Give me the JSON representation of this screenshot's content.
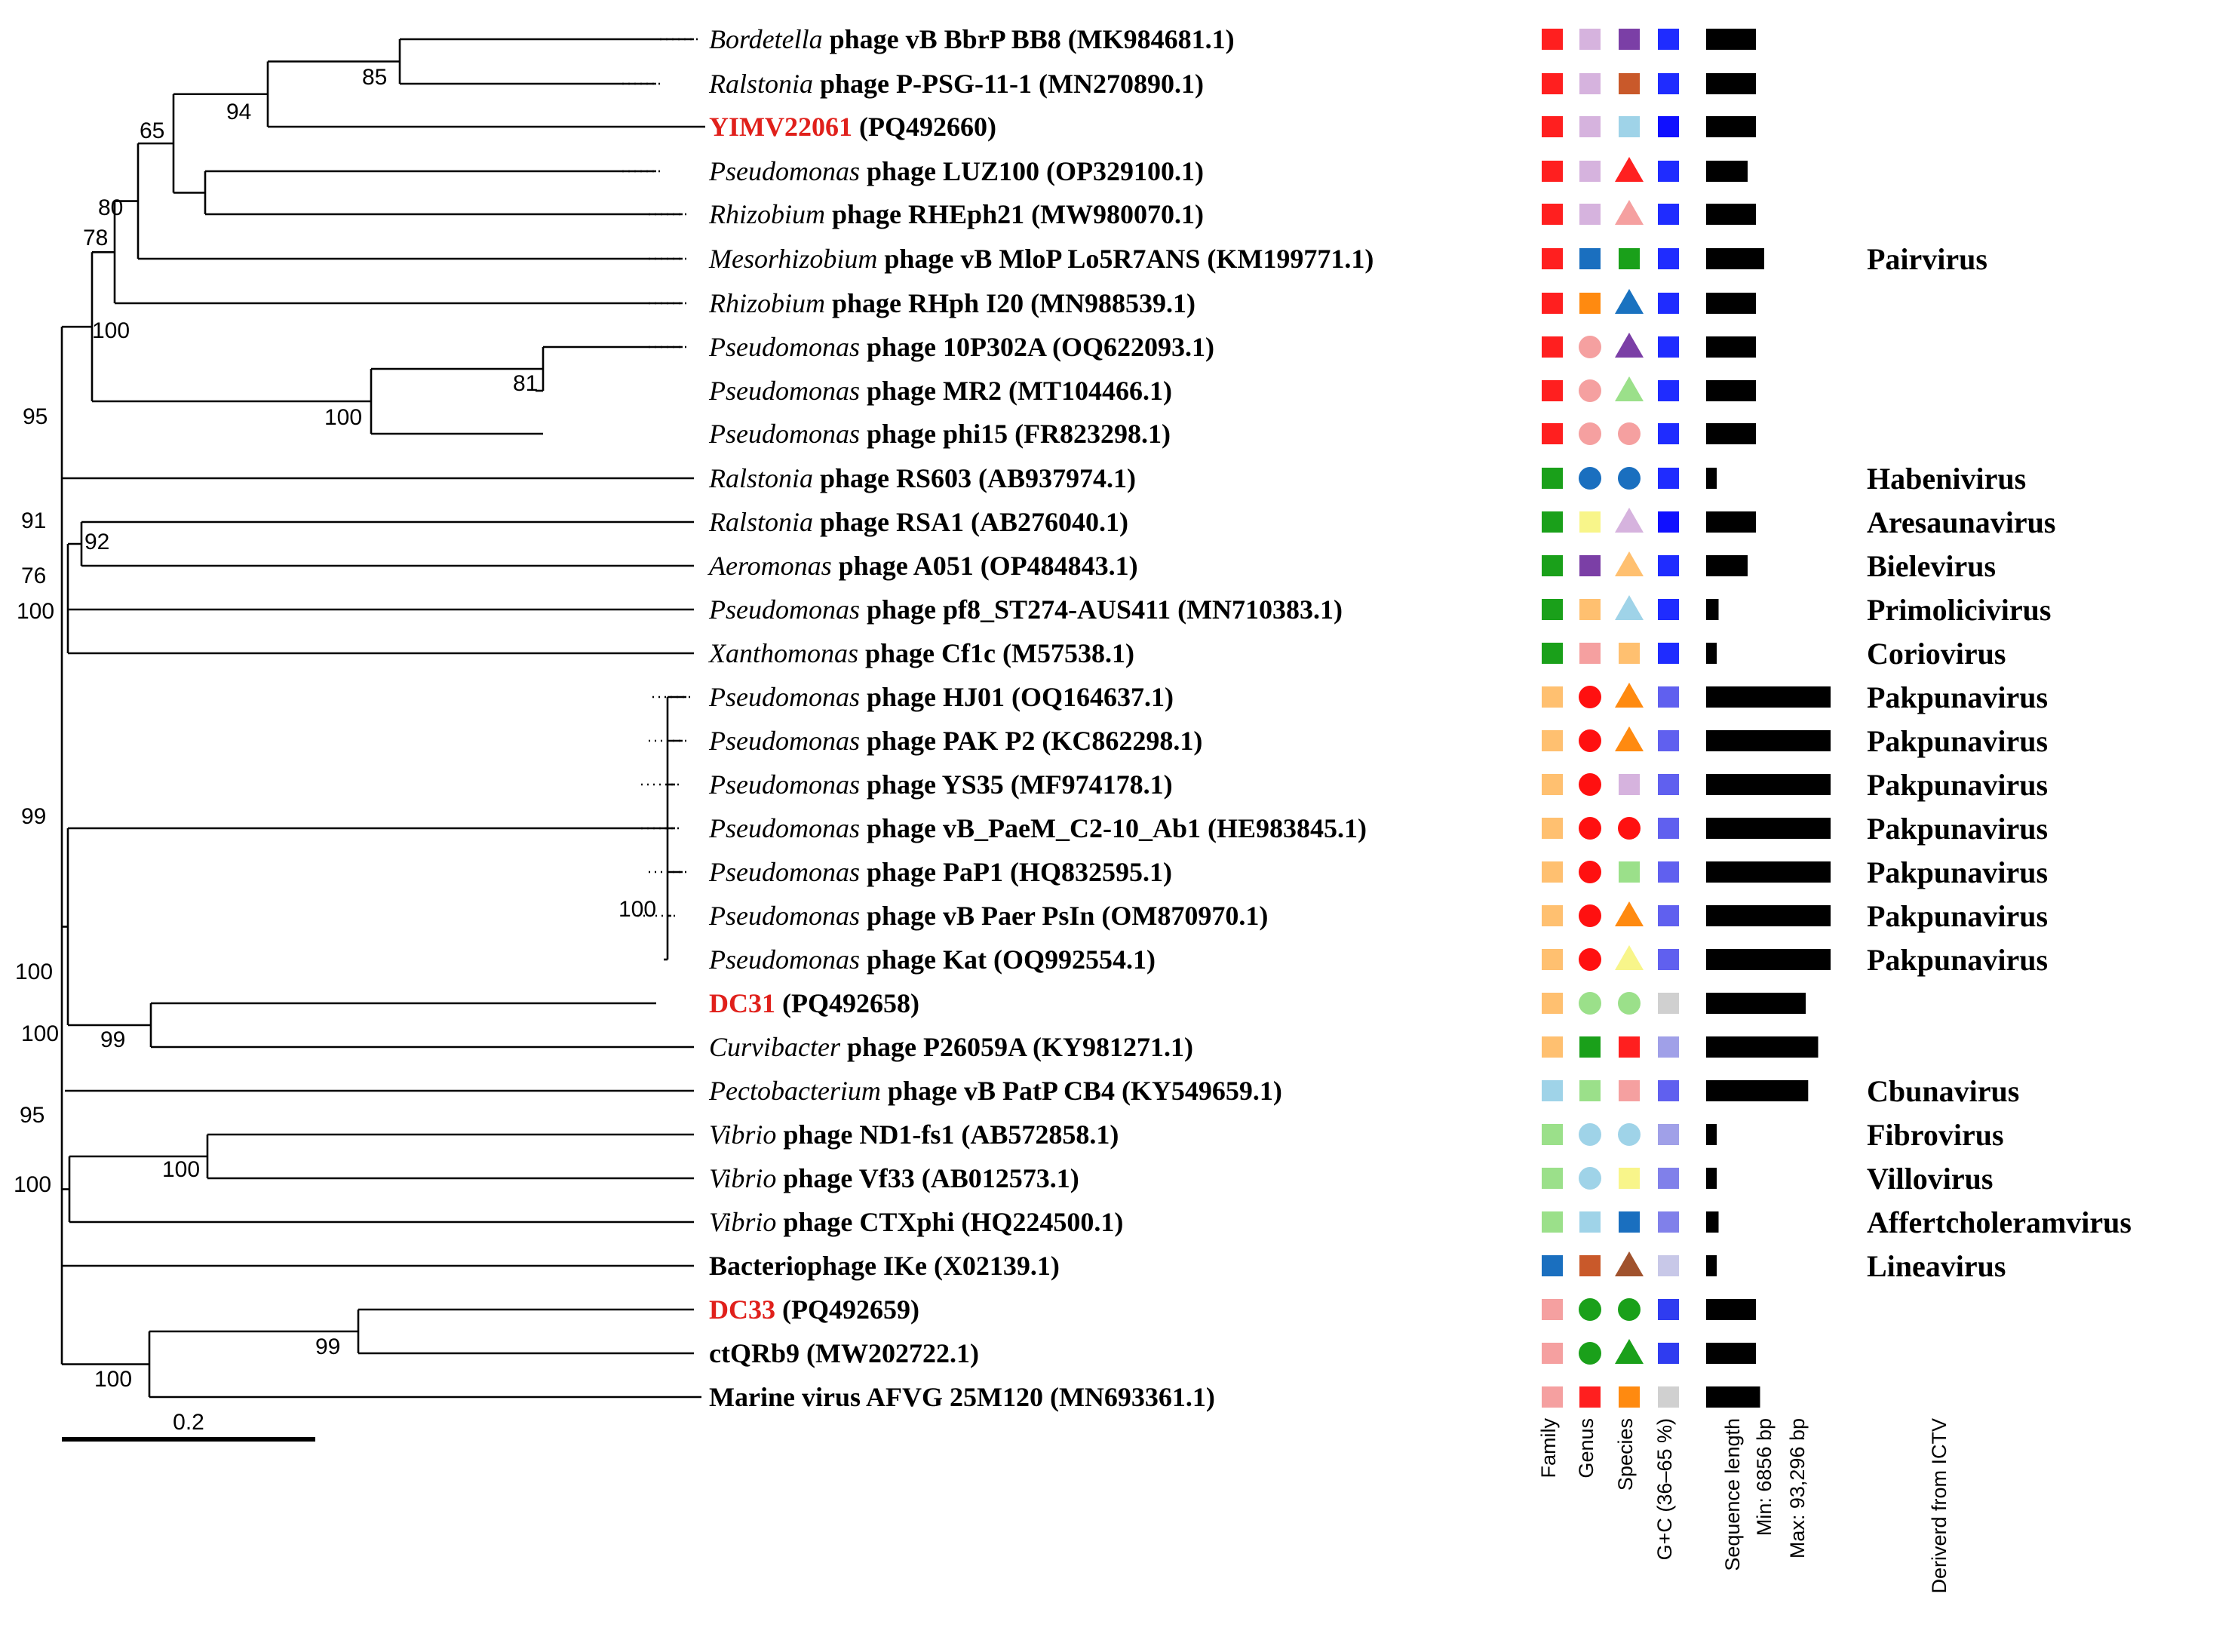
{
  "scale_bar": {
    "label": "0.2"
  },
  "taxa": [
    {
      "prefix": "Bordetella",
      "suffix": " phage vB BbrP BB8 (MK984681.1)",
      "highlight": "",
      "family": "#ff1f1f",
      "genus": "#d6b3de",
      "species": "#7b3fa6",
      "gc": "#1f2cff",
      "length": 6,
      "genus_label": ""
    },
    {
      "prefix": "Ralstonia",
      "suffix": " phage P-PSG-11-1 (MN270890.1)",
      "highlight": "",
      "family": "#ff1f1f",
      "genus": "#d6b3de",
      "species": "#c9592a",
      "gc": "#1f2cff",
      "length": 6,
      "genus_label": ""
    },
    {
      "prefix": "",
      "suffix": " (PQ492660)",
      "highlight": "YIMV22061",
      "family": "#ff1f1f",
      "genus": "#d6b3de",
      "species": "#9fd3e8",
      "gc": "#1010ff",
      "length": 6,
      "genus_label": ""
    },
    {
      "prefix": "Pseudomonas",
      "suffix": " phage LUZ100 (OP329100.1)",
      "highlight": "",
      "family": "#ff1f1f",
      "genus": "#d6b3de",
      "species": "#ff2020",
      "species_shape": "triangle",
      "gc": "#1f2cff",
      "length": 5,
      "genus_label": ""
    },
    {
      "prefix": "Rhizobium",
      "suffix": " phage RHEph21 (MW980070.1)",
      "highlight": "",
      "family": "#ff1f1f",
      "genus": "#d6b3de",
      "species": "#f5a0a0",
      "species_shape": "triangle",
      "gc": "#1f2cff",
      "length": 6,
      "genus_label": ""
    },
    {
      "prefix": "Mesorhizobium",
      "suffix": " phage vB MloP Lo5R7ANS (KM199771.1)",
      "highlight": "",
      "family": "#ff1f1f",
      "genus": "#1a6fbf",
      "species": "#1aa01a",
      "gc": "#1f2cff",
      "length": 7,
      "genus_label": "Pairvirus"
    },
    {
      "prefix": "Rhizobium",
      "suffix": " phage RHph I20 (MN988539.1)",
      "highlight": "",
      "family": "#ff1f1f",
      "genus": "#ff8a10",
      "species": "#1a72c0",
      "species_shape": "triangle",
      "gc": "#1f2cff",
      "length": 6,
      "genus_label": ""
    },
    {
      "prefix": "Pseudomonas",
      "suffix": " phage 10P302A (OQ622093.1)",
      "highlight": "",
      "family": "#ff1f1f",
      "genus": "#f5a0a0",
      "genus_shape": "circle",
      "species": "#7b3fa6",
      "species_shape": "triangle",
      "gc": "#1f2cff",
      "length": 6,
      "genus_label": ""
    },
    {
      "prefix": "Pseudomonas",
      "suffix": " phage MR2 (MT104466.1)",
      "highlight": "",
      "family": "#ff1f1f",
      "genus": "#f5a0a0",
      "genus_shape": "circle",
      "species": "#9be08a",
      "species_shape": "triangle",
      "gc": "#1f2cff",
      "length": 6,
      "genus_label": ""
    },
    {
      "prefix": "Pseudomonas",
      "suffix": " phage phi15 (FR823298.1)",
      "highlight": "",
      "family": "#ff1f1f",
      "genus": "#f5a0a0",
      "genus_shape": "circle",
      "species": "#f5a0a0",
      "species_shape": "circle",
      "gc": "#1f2cff",
      "length": 6,
      "genus_label": ""
    },
    {
      "prefix": "Ralstonia",
      "suffix": " phage RS603 (AB937974.1)",
      "highlight": "",
      "family": "#1aa01a",
      "genus": "#1a6fbf",
      "genus_shape": "circle",
      "species": "#1a6fbf",
      "species_shape": "circle",
      "gc": "#1f2cff",
      "length": 1,
      "genus_label": "Habenivirus"
    },
    {
      "prefix": "Ralstonia",
      "suffix": " phage RSA1 (AB276040.1)",
      "highlight": "",
      "family": "#1aa01a",
      "genus": "#f8f58a",
      "species": "#d6b3de",
      "species_shape": "triangle",
      "gc": "#1010ff",
      "length": 6,
      "genus_label": "Aresaunavirus"
    },
    {
      "prefix": "Aeromonas",
      "suffix": " phage A051 (OP484843.1)",
      "highlight": "",
      "family": "#1aa01a",
      "genus": "#7b3fa6",
      "species": "#ffc070",
      "species_shape": "triangle",
      "gc": "#1f2cff",
      "length": 5,
      "genus_label": "Bielevirus"
    },
    {
      "prefix": "Pseudomonas",
      "suffix": " phage pf8_ST274-AUS411 (MN710383.1)",
      "highlight": "",
      "family": "#1aa01a",
      "genus": "#ffc070",
      "species": "#9fd3e8",
      "species_shape": "triangle",
      "gc": "#1f2cff",
      "length": 1.5,
      "genus_label": "Primolicivirus"
    },
    {
      "prefix": "Xanthomonas",
      "suffix": " phage Cf1c (M57538.1)",
      "highlight": "",
      "family": "#1aa01a",
      "genus": "#f5a0a0",
      "species": "#ffc070",
      "gc": "#1f2cff",
      "length": 1,
      "genus_label": "Coriovirus"
    },
    {
      "prefix": "Pseudomonas",
      "suffix": " phage HJ01 (OQ164637.1)",
      "highlight": "",
      "family": "#ffc070",
      "genus": "#ff1010",
      "genus_shape": "circle",
      "species": "#ff8a10",
      "species_shape": "triangle",
      "gc": "#6060ef",
      "length": 15,
      "genus_label": "Pakpunavirus"
    },
    {
      "prefix": "Pseudomonas",
      "suffix": " phage PAK P2 (KC862298.1)",
      "highlight": "",
      "family": "#ffc070",
      "genus": "#ff1010",
      "genus_shape": "circle",
      "species": "#ff8a10",
      "species_shape": "triangle",
      "gc": "#6060ef",
      "length": 15,
      "genus_label": "Pakpunavirus"
    },
    {
      "prefix": "Pseudomonas",
      "suffix": " phage YS35 (MF974178.1)",
      "highlight": "",
      "family": "#ffc070",
      "genus": "#ff1010",
      "genus_shape": "circle",
      "species": "#d6b3de",
      "gc": "#6060ef",
      "length": 15,
      "genus_label": "Pakpunavirus"
    },
    {
      "prefix": "Pseudomonas",
      "suffix": " phage vB_PaeM_C2-10_Ab1 (HE983845.1)",
      "highlight": "",
      "family": "#ffc070",
      "genus": "#ff1010",
      "genus_shape": "circle",
      "species": "#ff1010",
      "species_shape": "circle",
      "gc": "#6060ef",
      "length": 15,
      "genus_label": "Pakpunavirus"
    },
    {
      "prefix": "Pseudomonas",
      "suffix": " phage PaP1 (HQ832595.1)",
      "highlight": "",
      "family": "#ffc070",
      "genus": "#ff1010",
      "genus_shape": "circle",
      "species": "#9be08a",
      "gc": "#6060ef",
      "length": 15,
      "genus_label": "Pakpunavirus"
    },
    {
      "prefix": "Pseudomonas",
      "suffix": " phage vB Paer PsIn (OM870970.1)",
      "highlight": "",
      "family": "#ffc070",
      "genus": "#ff1010",
      "genus_shape": "circle",
      "species": "#ff8a10",
      "species_shape": "triangle",
      "gc": "#6060ef",
      "length": 15,
      "genus_label": "Pakpunavirus"
    },
    {
      "prefix": "Pseudomonas",
      "suffix": " phage Kat (OQ992554.1)",
      "highlight": "",
      "family": "#ffc070",
      "genus": "#ff1010",
      "genus_shape": "circle",
      "species": "#f8f58a",
      "species_shape": "triangle",
      "gc": "#6060ef",
      "length": 15,
      "genus_label": "Pakpunavirus"
    },
    {
      "prefix": "",
      "suffix": " (PQ492658)",
      "highlight": "DC31",
      "family": "#ffc070",
      "genus": "#9be08a",
      "genus_shape": "circle",
      "species": "#9be08a",
      "species_shape": "circle",
      "gc": "#d0d0d0",
      "length": 12,
      "genus_label": ""
    },
    {
      "prefix": "Curvibacter",
      "suffix": " phage P26059A (KY981271.1)",
      "highlight": "",
      "family": "#ffc070",
      "genus": "#1aa01a",
      "species": "#ff1f1f",
      "gc": "#a0a0e8",
      "length": 13.5,
      "genus_label": ""
    },
    {
      "prefix": "Pectobacterium",
      "suffix": " phage vB PatP CB4 (KY549659.1)",
      "highlight": "",
      "family": "#9fd3e8",
      "genus": "#9be08a",
      "species": "#f5a0a0",
      "gc": "#6060ef",
      "length": 12.3,
      "genus_label": "Cbunavirus"
    },
    {
      "prefix": "Vibrio",
      "suffix": " phage ND1-fs1 (AB572858.1)",
      "highlight": "",
      "family": "#9be08a",
      "genus": "#9fd3e8",
      "genus_shape": "circle",
      "species": "#9fd3e8",
      "species_shape": "circle",
      "gc": "#a0a0e8",
      "length": 1,
      "genus_label": "Fibrovirus"
    },
    {
      "prefix": "Vibrio",
      "suffix": " phage Vf33 (AB012573.1)",
      "highlight": "",
      "family": "#9be08a",
      "genus": "#9fd3e8",
      "genus_shape": "circle",
      "species": "#f8f58a",
      "gc": "#8080ea",
      "length": 1.2,
      "genus_label": "Villovirus"
    },
    {
      "prefix": "Vibrio",
      "suffix": " phage CTXphi (HQ224500.1)",
      "highlight": "",
      "family": "#9be08a",
      "genus": "#9fd3e8",
      "species": "#1a6fbf",
      "gc": "#8080ea",
      "length": 1.5,
      "genus_label": "Affertcholeramvirus"
    },
    {
      "prefix": "",
      "suffix": "Bacteriophage IKe (X02139.1)",
      "highlight": "",
      "family": "#1a6fbf",
      "genus": "#c9592a",
      "species": "#a0522d",
      "species_shape": "triangle",
      "gc": "#c8c8e8",
      "length": 1,
      "genus_label": "Lineavirus"
    },
    {
      "prefix": "",
      "suffix": " (PQ492659)",
      "highlight": "DC33",
      "family": "#f5a0a0",
      "genus": "#1aa01a",
      "genus_shape": "circle",
      "species": "#1aa01a",
      "species_shape": "circle",
      "gc": "#2f3cf0",
      "length": 6,
      "genus_label": ""
    },
    {
      "prefix": "",
      "suffix": "ctQRb9 (MW202722.1)",
      "highlight": "",
      "family": "#f5a0a0",
      "genus": "#1aa01a",
      "genus_shape": "circle",
      "species": "#1aa01a",
      "species_shape": "triangle",
      "gc": "#2f3cf0",
      "length": 6,
      "genus_label": ""
    },
    {
      "prefix": "",
      "suffix": "Marine virus AFVG 25M120 (MN693361.1)",
      "highlight": "",
      "family": "#f5a0a0",
      "genus": "#ff1f1f",
      "species": "#ff8a10",
      "gc": "#d0d0d0",
      "length": 6.5,
      "genus_label": ""
    }
  ],
  "bootstrap": [
    {
      "label": "85",
      "node": "n01"
    },
    {
      "label": "94",
      "node": "n02"
    },
    {
      "label": "65",
      "node": "n03"
    },
    {
      "label": "80",
      "node": "n04"
    },
    {
      "label": "78",
      "node": "n05"
    },
    {
      "label": "100",
      "node": "n06"
    },
    {
      "label": "81",
      "node": "n07"
    },
    {
      "label": "100",
      "node": "n08"
    },
    {
      "label": "95",
      "node": "n09"
    },
    {
      "label": "91",
      "node": "n10"
    },
    {
      "label": "92",
      "node": "n11"
    },
    {
      "label": "76",
      "node": "n12"
    },
    {
      "label": "100",
      "node": "n13"
    },
    {
      "label": "99",
      "node": "n14"
    },
    {
      "label": "100",
      "node": "n15"
    },
    {
      "label": "100",
      "node": "n16"
    },
    {
      "label": "99",
      "node": "n17"
    },
    {
      "label": "100",
      "node": "n18"
    },
    {
      "label": "95",
      "node": "n19"
    },
    {
      "label": "100",
      "node": "n20"
    },
    {
      "label": "100",
      "node": "n21"
    },
    {
      "label": "99",
      "node": "n22"
    },
    {
      "label": "100",
      "node": "n23"
    }
  ],
  "columns": {
    "family": "Family",
    "genus": "Genus",
    "species": "Species",
    "gc": "G+C (36–65 %)",
    "seqlen": "Sequence length",
    "min": "Min: 6856 bp",
    "max": "Max: 93,296 bp",
    "ictv": "Deriverd from ICTV"
  }
}
